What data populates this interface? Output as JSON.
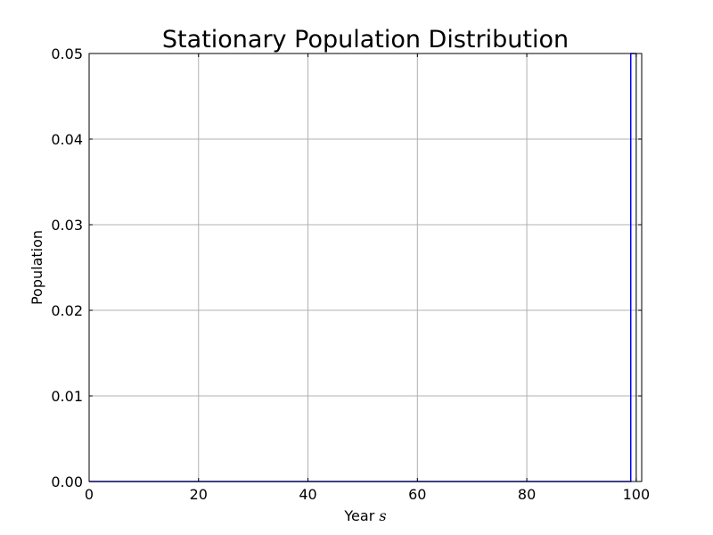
{
  "chart_data": {
    "type": "line",
    "title": "Stationary Population Distribution",
    "xlabel": "Year",
    "xlabel_math": "s",
    "ylabel": "Population",
    "xlim": [
      0,
      101
    ],
    "ylim": [
      0,
      0.05
    ],
    "grid": true,
    "x_ticks": [
      0,
      20,
      40,
      60,
      80,
      100
    ],
    "x_tick_labels": [
      "0",
      "20",
      "40",
      "60",
      "80",
      "100"
    ],
    "y_ticks": [
      0,
      0.01,
      0.02,
      0.03,
      0.04,
      0.05
    ],
    "y_tick_labels": [
      "0.00",
      "0.01",
      "0.02",
      "0.03",
      "0.04",
      "0.05"
    ],
    "series": [
      {
        "color": "#0000ff",
        "x": [
          0,
          98,
          99,
          99,
          100
        ],
        "y": [
          0,
          0,
          0,
          0.05,
          0.05
        ]
      }
    ],
    "vertical_lines": [
      {
        "x": 100,
        "color": "#000000"
      }
    ]
  }
}
